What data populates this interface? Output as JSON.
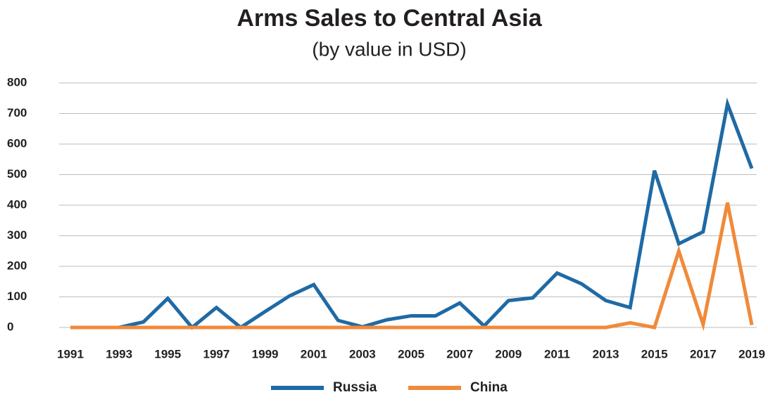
{
  "chart_data": {
    "type": "line",
    "title": "Arms Sales to Central Asia",
    "subtitle": "(by value in USD)",
    "x": [
      1991,
      1992,
      1993,
      1994,
      1995,
      1996,
      1997,
      1998,
      1999,
      2000,
      2001,
      2002,
      2003,
      2004,
      2005,
      2006,
      2007,
      2008,
      2009,
      2010,
      2011,
      2012,
      2013,
      2014,
      2015,
      2016,
      2017,
      2018,
      2019
    ],
    "series": [
      {
        "name": "Russia",
        "color": "#1f6aa5",
        "values": [
          0,
          0,
          0,
          18,
          95,
          0,
          65,
          0,
          52,
          103,
          140,
          23,
          2,
          25,
          38,
          38,
          80,
          5,
          88,
          97,
          178,
          143,
          88,
          65,
          513,
          274,
          313,
          731,
          520
        ]
      },
      {
        "name": "China",
        "color": "#f08a3a",
        "values": [
          0,
          0,
          0,
          0,
          0,
          0,
          0,
          0,
          0,
          0,
          0,
          0,
          0,
          0,
          0,
          0,
          0,
          0,
          0,
          0,
          0,
          0,
          0,
          15,
          0,
          250,
          10,
          408,
          8
        ]
      }
    ],
    "xlim": [
      1991,
      2019
    ],
    "xticks": [
      1991,
      1993,
      1995,
      1997,
      1999,
      2001,
      2003,
      2005,
      2007,
      2009,
      2011,
      2013,
      2015,
      2017,
      2019
    ],
    "ylim": [
      0,
      800
    ],
    "yticks": [
      0,
      100,
      200,
      300,
      400,
      500,
      600,
      700,
      800
    ],
    "grid": true,
    "legend": "bottom"
  }
}
